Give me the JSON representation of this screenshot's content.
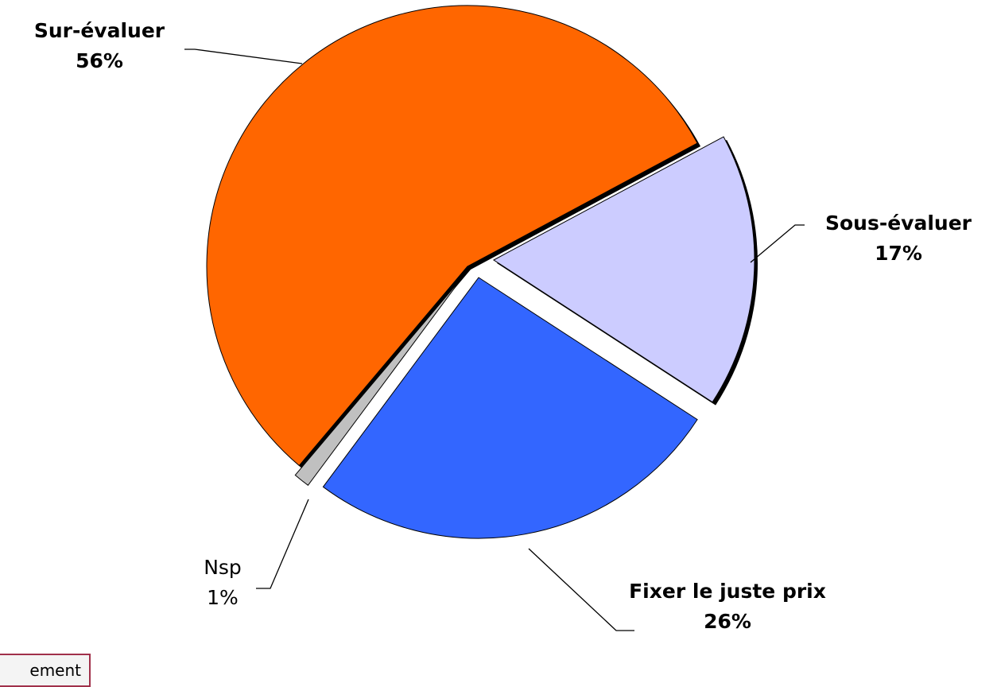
{
  "chart_data": {
    "type": "pie",
    "categories": [
      "Sur-évaluer",
      "Sous-évaluer",
      "Fixer le juste prix",
      "Nsp"
    ],
    "values": [
      56,
      17,
      26,
      1
    ],
    "value_labels": [
      "56%",
      "17%",
      "26%",
      "1%"
    ],
    "colors": [
      "#ff6600",
      "#ccccff",
      "#3366ff",
      "#c0c0c0"
    ]
  },
  "button_label": "ement"
}
